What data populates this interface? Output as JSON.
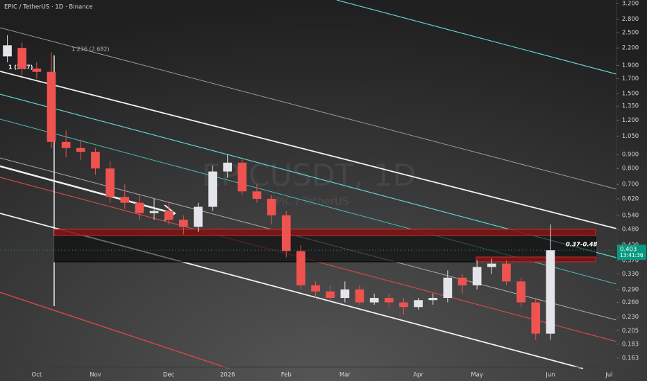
{
  "chart_data": {
    "type": "candlestick",
    "title": "EPIC / TetherUS · 1D · Binance",
    "watermark": "EPICUSDT, 1D",
    "watermark_subtitle": "EPIC / TetherUS",
    "categories": [
      null,
      null,
      "Oct",
      null,
      null,
      null,
      "Nov",
      null,
      null,
      null,
      null,
      "Dec",
      null,
      null,
      null,
      "2026",
      null,
      null,
      null,
      "Feb",
      null,
      null,
      null,
      "Mar",
      null,
      null,
      null,
      null,
      "Apr",
      null,
      null,
      null,
      "May",
      null,
      null,
      null,
      null,
      "Jun",
      null,
      null,
      null,
      "Jul"
    ],
    "open": [
      2.05,
      2.2,
      1.85,
      1.8,
      1.0,
      0.95,
      0.92,
      0.8,
      0.63,
      0.6,
      0.55,
      0.56,
      0.52,
      0.49,
      0.58,
      0.78,
      0.84,
      0.66,
      0.62,
      0.54,
      0.4,
      0.3,
      0.285,
      0.27,
      0.29,
      0.26,
      0.27,
      0.26,
      0.25,
      0.265,
      0.27,
      0.32,
      0.3,
      0.35,
      0.36,
      0.31,
      0.26,
      0.2,
      null,
      null,
      null,
      null
    ],
    "high": [
      2.45,
      2.3,
      1.95,
      2.12,
      1.1,
      1.02,
      0.95,
      0.85,
      0.7,
      0.64,
      0.62,
      0.6,
      0.54,
      0.6,
      0.82,
      0.9,
      0.86,
      0.7,
      0.64,
      0.56,
      0.42,
      0.31,
      0.3,
      0.31,
      0.3,
      0.28,
      0.28,
      0.27,
      0.27,
      0.28,
      0.34,
      0.33,
      0.37,
      0.375,
      0.37,
      0.32,
      0.27,
      0.5,
      null,
      null,
      null,
      null
    ],
    "low": [
      1.95,
      1.75,
      1.7,
      0.95,
      0.88,
      0.86,
      0.76,
      0.6,
      0.57,
      0.52,
      0.52,
      0.5,
      0.46,
      0.47,
      0.56,
      0.74,
      0.64,
      0.6,
      0.5,
      0.38,
      0.29,
      0.27,
      0.265,
      0.26,
      0.255,
      0.255,
      0.25,
      0.235,
      0.245,
      0.255,
      0.26,
      0.28,
      0.29,
      0.33,
      0.3,
      0.25,
      0.19,
      0.19,
      null,
      null,
      null,
      null
    ],
    "close": [
      2.25,
      1.85,
      1.8,
      1.0,
      0.95,
      0.92,
      0.8,
      0.63,
      0.6,
      0.55,
      0.56,
      0.52,
      0.49,
      0.58,
      0.78,
      0.84,
      0.66,
      0.62,
      0.54,
      0.4,
      0.3,
      0.285,
      0.27,
      0.29,
      0.26,
      0.27,
      0.26,
      0.25,
      0.265,
      0.27,
      0.32,
      0.3,
      0.35,
      0.36,
      0.31,
      0.26,
      0.2,
      0.403,
      null,
      null,
      null,
      null
    ],
    "up_color": "#e3e5ea",
    "down_color": "#ef5350",
    "log_scale": true,
    "ylim": [
      0.151,
      3.29
    ],
    "yticks": [
      {
        "value": 3.2,
        "label": "3.200"
      },
      {
        "value": 2.8,
        "label": "2.800"
      },
      {
        "value": 2.5,
        "label": "2.500"
      },
      {
        "value": 2.2,
        "label": "2.200"
      },
      {
        "value": 1.9,
        "label": "1.900"
      },
      {
        "value": 1.7,
        "label": "1.700"
      },
      {
        "value": 1.5,
        "label": "1.500"
      },
      {
        "value": 1.35,
        "label": "1.350"
      },
      {
        "value": 1.2,
        "label": "1.200"
      },
      {
        "value": 1.05,
        "label": "1.050"
      },
      {
        "value": 0.9,
        "label": "0.900"
      },
      {
        "value": 0.8,
        "label": "0.800"
      },
      {
        "value": 0.7,
        "label": "0.700"
      },
      {
        "value": 0.62,
        "label": "0.620"
      },
      {
        "value": 0.54,
        "label": "0.540"
      },
      {
        "value": 0.48,
        "label": "0.480"
      },
      {
        "value": 0.42,
        "label": "0.420"
      },
      {
        "value": 0.37,
        "label": "0.370"
      },
      {
        "value": 0.33,
        "label": "0.330"
      },
      {
        "value": 0.29,
        "label": "0.290"
      },
      {
        "value": 0.26,
        "label": "0.260"
      },
      {
        "value": 0.23,
        "label": "0.230"
      },
      {
        "value": 0.205,
        "label": "0.205"
      },
      {
        "value": 0.183,
        "label": "0.183"
      },
      {
        "value": 0.163,
        "label": "0.163"
      }
    ],
    "last_price": {
      "value": 0.403,
      "label": "0.403"
    },
    "last_price_color": "#089981",
    "countdown": "13:41:36",
    "annotations": [
      "1.236 (2.682)",
      "1 (2.17)",
      "0.37-0.48"
    ]
  }
}
